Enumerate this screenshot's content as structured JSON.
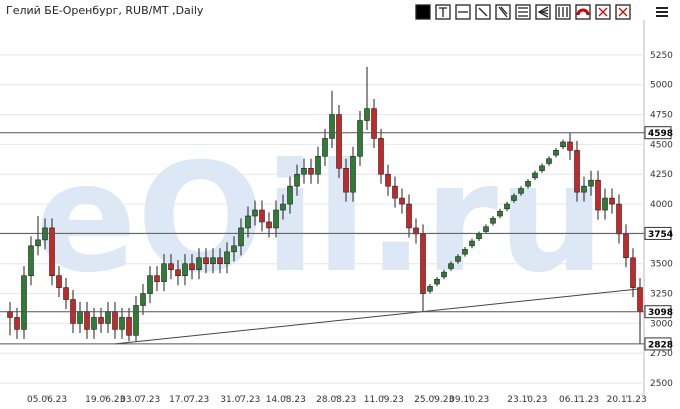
{
  "chart_data": {
    "type": "candlestick",
    "title": "Гелий БЕ-Оренбург, RUB/MT ,Daily",
    "watermark": "eOil.ru",
    "categories": [
      null,
      null,
      null,
      null,
      null,
      null,
      null,
      null,
      null,
      null,
      null,
      null,
      null,
      null,
      null,
      null,
      null,
      null,
      null,
      null,
      null,
      null,
      null,
      null,
      null,
      null,
      null,
      null,
      null,
      null,
      null,
      null,
      null,
      null,
      null,
      null,
      null,
      null,
      null,
      null,
      null,
      null,
      null,
      null,
      null,
      null,
      null,
      null,
      null,
      null,
      null,
      null,
      null,
      null,
      null,
      null,
      null,
      null,
      null,
      null,
      null,
      null,
      null,
      null,
      null,
      null,
      null,
      null,
      null,
      null,
      null,
      null,
      null,
      null,
      null,
      null,
      null,
      null,
      null,
      null,
      null,
      null,
      null,
      null,
      null,
      null,
      null,
      null,
      null,
      null,
      null
    ],
    "open": [
      3100,
      3050,
      2950,
      3400,
      3650,
      3700,
      3800,
      3400,
      3300,
      3200,
      3000,
      3100,
      2950,
      3050,
      3000,
      3100,
      2950,
      3050,
      2900,
      3150,
      3250,
      3400,
      3350,
      3500,
      3450,
      3400,
      3500,
      3450,
      3550,
      3500,
      3550,
      3500,
      3600,
      3650,
      3800,
      3900,
      3950,
      3850,
      3800,
      3950,
      4000,
      4150,
      4250,
      4300,
      4250,
      4400,
      4550,
      4750,
      4300,
      4100,
      4400,
      4700,
      4800,
      4550,
      4250,
      4150,
      4050,
      4000,
      3800,
      3750,
      3270,
      3330,
      3390,
      3460,
      3520,
      3580,
      3650,
      3710,
      3770,
      3840,
      3900,
      3960,
      4030,
      4090,
      4150,
      4220,
      4280,
      4340,
      4410,
      4480,
      4520,
      4450,
      4100,
      4150,
      4200,
      3950,
      4050,
      4000,
      3750,
      3550,
      3300
    ],
    "high": [
      3180,
      3130,
      3480,
      3730,
      3900,
      3880,
      3880,
      3480,
      3380,
      3280,
      3180,
      3180,
      3130,
      3130,
      3180,
      3180,
      3130,
      3130,
      3230,
      3330,
      3480,
      3480,
      3580,
      3580,
      3530,
      3580,
      3580,
      3630,
      3630,
      3630,
      3630,
      3680,
      3730,
      3880,
      3980,
      4030,
      4030,
      3930,
      4030,
      4080,
      4230,
      4330,
      4380,
      4380,
      4480,
      4630,
      4950,
      4830,
      4380,
      4480,
      4780,
      5150,
      4880,
      4630,
      4330,
      4230,
      4130,
      4080,
      3880,
      3830,
      3330,
      3390,
      3450,
      3520,
      3580,
      3640,
      3710,
      3770,
      3830,
      3900,
      3960,
      4020,
      4090,
      4150,
      4210,
      4280,
      4340,
      4400,
      4470,
      4540,
      4600,
      4530,
      4230,
      4280,
      4280,
      4130,
      4130,
      4080,
      3830,
      3630,
      3380
    ],
    "low": [
      2900,
      2870,
      2870,
      3320,
      3570,
      3620,
      3320,
      3220,
      3120,
      2920,
      2920,
      2870,
      2870,
      2920,
      2920,
      2870,
      2870,
      2850,
      2850,
      3070,
      3170,
      3270,
      3270,
      3370,
      3320,
      3320,
      3370,
      3370,
      3420,
      3420,
      3420,
      3420,
      3520,
      3570,
      3720,
      3820,
      3770,
      3720,
      3720,
      3870,
      3920,
      4070,
      4170,
      4170,
      4170,
      4320,
      4470,
      4220,
      4020,
      4020,
      4320,
      4620,
      4470,
      4170,
      4070,
      3970,
      3920,
      3720,
      3670,
      3100,
      3250,
      3310,
      3370,
      3440,
      3500,
      3560,
      3630,
      3690,
      3750,
      3820,
      3880,
      3940,
      4010,
      4070,
      4130,
      4200,
      4260,
      4320,
      4390,
      4460,
      4370,
      4020,
      4020,
      4070,
      3870,
      3870,
      3920,
      3670,
      3470,
      3220,
      2830
    ],
    "close": [
      3050,
      2950,
      3400,
      3650,
      3700,
      3800,
      3400,
      3300,
      3200,
      3000,
      3100,
      2950,
      3050,
      3000,
      3100,
      2950,
      3050,
      2900,
      3150,
      3250,
      3400,
      3350,
      3500,
      3450,
      3400,
      3500,
      3450,
      3550,
      3500,
      3550,
      3500,
      3600,
      3650,
      3800,
      3900,
      3950,
      3850,
      3800,
      3950,
      4000,
      4150,
      4250,
      4300,
      4250,
      4400,
      4550,
      4750,
      4300,
      4100,
      4400,
      4700,
      4800,
      4550,
      4250,
      4150,
      4050,
      4000,
      3800,
      3750,
      3250,
      3310,
      3370,
      3430,
      3500,
      3560,
      3620,
      3690,
      3750,
      3810,
      3880,
      3940,
      4000,
      4070,
      4130,
      4190,
      4260,
      4320,
      4380,
      4450,
      4520,
      4450,
      4100,
      4150,
      4200,
      3950,
      4050,
      4000,
      3750,
      3550,
      3300,
      3100
    ],
    "up_color": "#2e7d32",
    "down_color": "#c62828",
    "ylim": [
      2400,
      5400
    ],
    "yticks": [
      2500,
      2750,
      3000,
      3250,
      3500,
      3750,
      4000,
      4250,
      4500,
      4750,
      5000,
      5250
    ],
    "grid": true,
    "xticks": [
      {
        "value": 5.3,
        "label": "05.06.23"
      },
      {
        "value": 13.6,
        "label": "19.06.23"
      },
      {
        "value": 18.6,
        "label": "03.07.23"
      },
      {
        "value": 25.6,
        "label": "17.07.23"
      },
      {
        "value": 32.9,
        "label": "31.07.23"
      },
      {
        "value": 39.4,
        "label": "14.08.23"
      },
      {
        "value": 46.6,
        "label": "28.08.23"
      },
      {
        "value": 53.4,
        "label": "11.09.23"
      },
      {
        "value": 60.6,
        "label": "25.09.23"
      },
      {
        "value": 65.6,
        "label": "09.10.23"
      },
      {
        "value": 73.9,
        "label": "23.10.23"
      },
      {
        "value": 81.3,
        "label": "06.11.23"
      },
      {
        "value": 88.1,
        "label": "20.11.23"
      }
    ],
    "hlines": [
      4598,
      3754,
      3098,
      2828
    ],
    "trendline": {
      "x": [
        15,
        90
      ],
      "y": [
        2828,
        3290
      ]
    }
  }
}
